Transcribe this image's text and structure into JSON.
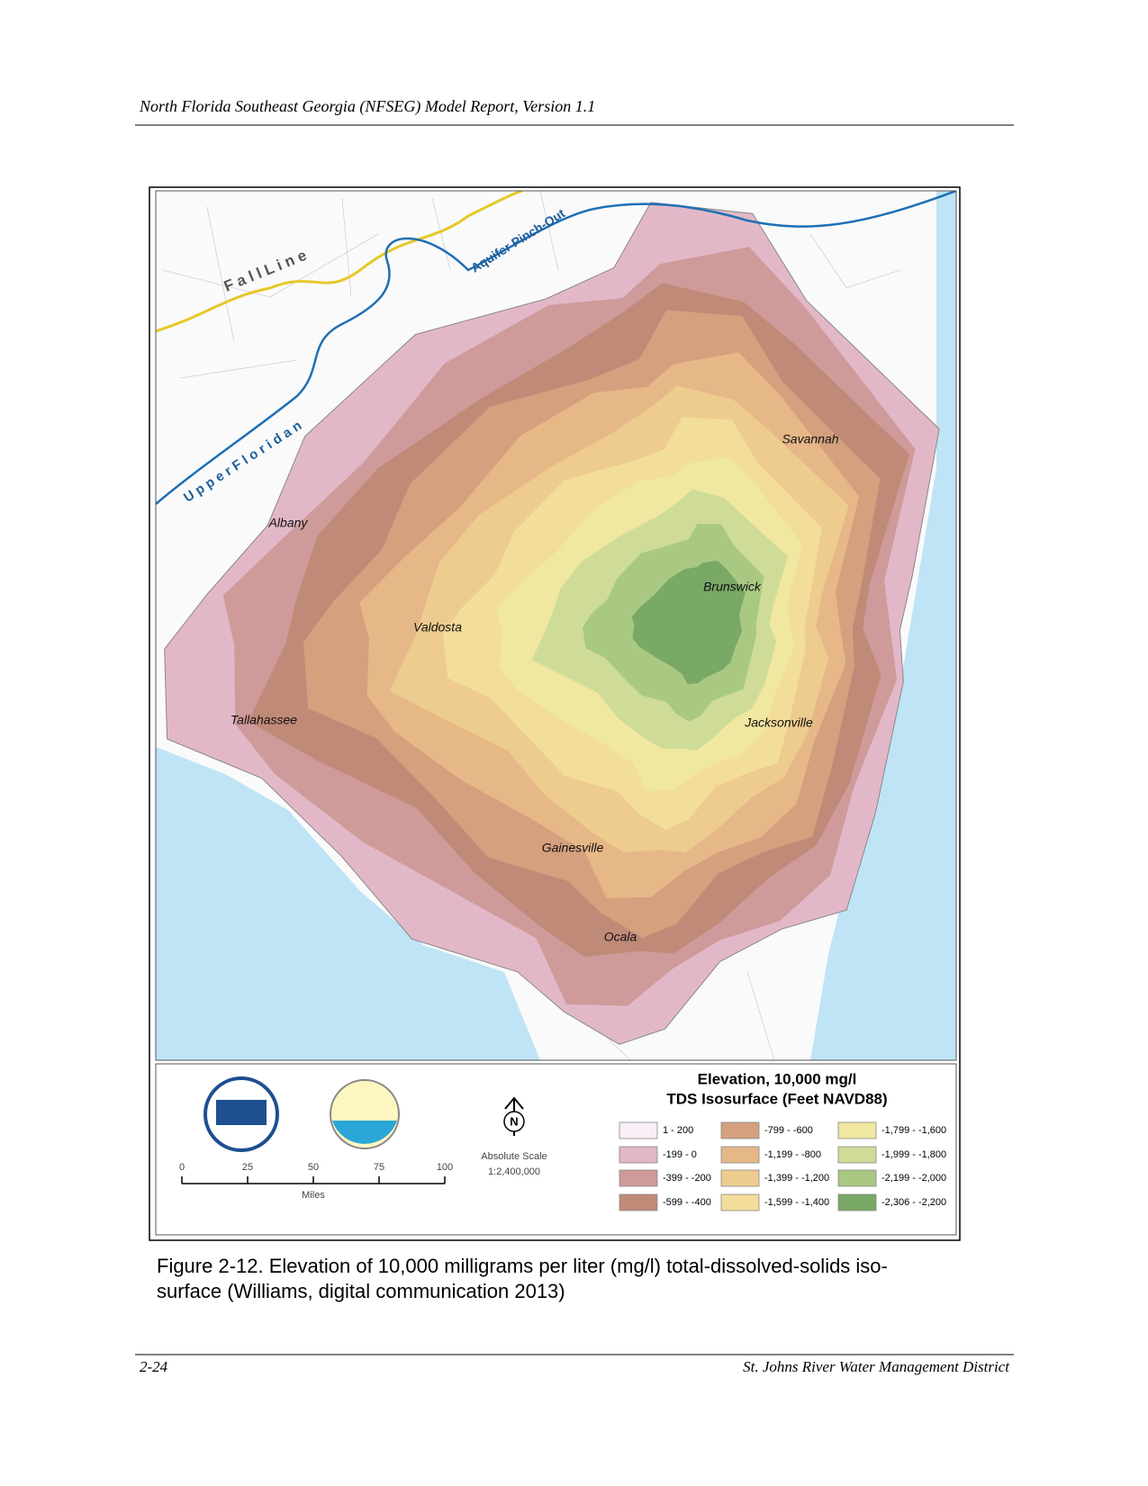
{
  "header": {
    "title": "North Florida Southeast Georgia (NFSEG) Model Report, Version 1.1"
  },
  "map": {
    "line_labels": {
      "fall_line": "F a l l   L i n e",
      "pinch_out": "Aquifer Pinch-Out",
      "upper_floridan": "U p p e r   F l o r i d a n"
    },
    "cities": [
      "Savannah",
      "Albany",
      "Brunswick",
      "Valdosta",
      "Tallahassee",
      "Jacksonville",
      "Gainesville",
      "Ocala"
    ]
  },
  "legend": {
    "title": [
      "Elevation, 10,000 mg/l",
      "TDS Isosurface (Feet NAVD88)"
    ],
    "items": [
      {
        "label": "1 - 200",
        "color": "#f9eef5"
      },
      {
        "label": "-199 - 0",
        "color": "#e2b8c8"
      },
      {
        "label": "-399 - -200",
        "color": "#cf9a9a"
      },
      {
        "label": "-599 - -400",
        "color": "#c08a78"
      },
      {
        "label": "-799 - -600",
        "color": "#d4a07e"
      },
      {
        "label": "-1,199 - -800",
        "color": "#e6b888"
      },
      {
        "label": "-1,399 - -1,200",
        "color": "#eecb8e"
      },
      {
        "label": "-1,599 - -1,400",
        "color": "#f3dd9a"
      },
      {
        "label": "-1,799 - -1,600",
        "color": "#f0e7a0"
      },
      {
        "label": "-1,999 - -1,800",
        "color": "#cfdc98"
      },
      {
        "label": "-2,199 - -2,000",
        "color": "#a9c983"
      },
      {
        "label": "-2,306 - -2,200",
        "color": "#7aa865"
      }
    ],
    "north": "N",
    "scale_ticks": [
      0,
      25,
      50,
      75,
      100
    ],
    "scale_unit": "Miles",
    "scale_title": "Absolute Scale",
    "scale_ratio": "1:2,400,000"
  },
  "caption": [
    "Figure 2-12.     Elevation of 10,000 milligrams per liter (mg/l) total-dissolved-solids iso-",
    "surface (Williams, digital communication 2013)"
  ],
  "footer": {
    "left": "2-24",
    "right": "St. Johns River Water Management District"
  }
}
